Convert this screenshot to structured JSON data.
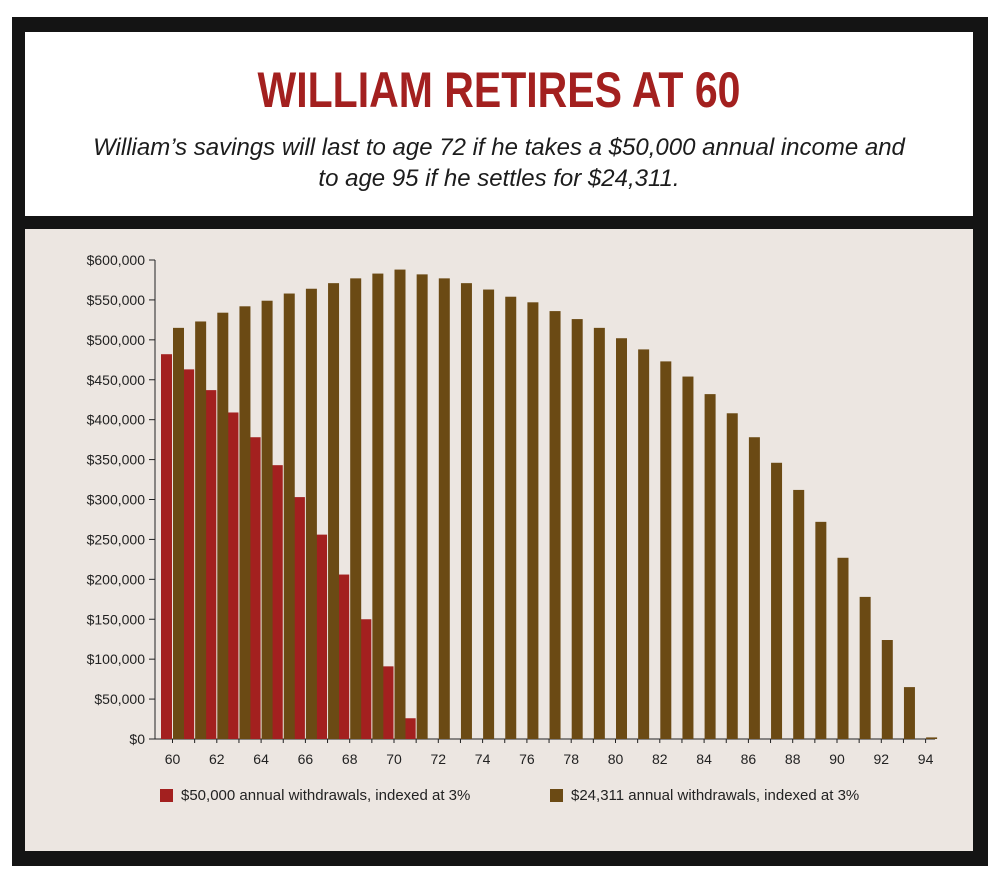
{
  "header": {
    "title": "WILLIAM RETIRES AT 60",
    "subtitle": "William’s savings will last to age 72 if he takes a $50,000 annual income and to age 95 if he settles for $24,311."
  },
  "colors": {
    "red": "#a3201f",
    "brown": "#6b4a14",
    "frame": "#141414",
    "panel": "#ece6e1"
  },
  "chart_data": {
    "type": "bar",
    "title": "WILLIAM RETIRES AT 60",
    "xlabel": "",
    "ylabel": "",
    "ylim": [
      0,
      600000
    ],
    "yticks": [
      "$0",
      "$50,000",
      "$100,000",
      "$150,000",
      "$200,000",
      "$250,000",
      "$300,000",
      "$350,000",
      "$400,000",
      "$450,000",
      "$500,000",
      "$550,000",
      "$600,000"
    ],
    "xticks": [
      "60",
      "62",
      "64",
      "66",
      "68",
      "70",
      "72",
      "74",
      "76",
      "78",
      "80",
      "82",
      "84",
      "86",
      "88",
      "90",
      "92",
      "94"
    ],
    "categories": [
      60,
      61,
      62,
      63,
      64,
      65,
      66,
      67,
      68,
      69,
      70,
      71,
      72,
      73,
      74,
      75,
      76,
      77,
      78,
      79,
      80,
      81,
      82,
      83,
      84,
      85,
      86,
      87,
      88,
      89,
      90,
      91,
      92,
      93,
      94
    ],
    "series": [
      {
        "name": "$50,000 annual withdrawals, indexed at 3%",
        "color": "#a3201f",
        "values": [
          482000,
          463000,
          437000,
          409000,
          378000,
          343000,
          303000,
          256000,
          206000,
          150000,
          91000,
          26000,
          0,
          0,
          0,
          0,
          0,
          0,
          0,
          0,
          0,
          0,
          0,
          0,
          0,
          0,
          0,
          0,
          0,
          0,
          0,
          0,
          0,
          0,
          0
        ]
      },
      {
        "name": "$24,311 annual withdrawals, indexed at 3%",
        "color": "#6b4a14",
        "values": [
          515000,
          523000,
          534000,
          542000,
          549000,
          558000,
          564000,
          571000,
          577000,
          583000,
          588000,
          582000,
          577000,
          571000,
          563000,
          554000,
          547000,
          536000,
          526000,
          515000,
          502000,
          488000,
          473000,
          454000,
          432000,
          408000,
          378000,
          346000,
          312000,
          272000,
          227000,
          178000,
          124000,
          65000,
          2000
        ]
      }
    ],
    "legend": "bottom"
  }
}
